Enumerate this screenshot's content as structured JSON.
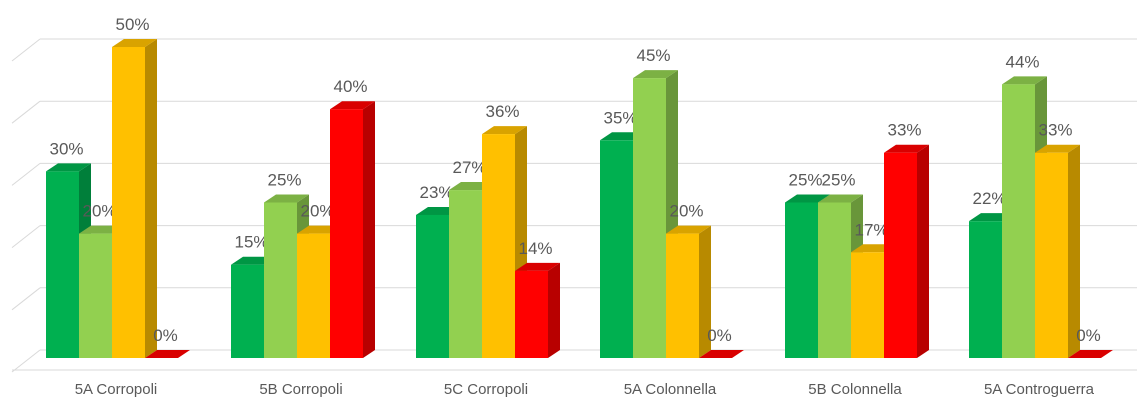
{
  "chart_data": {
    "type": "bar",
    "style": "3d-clustered-column",
    "categories": [
      "5A Corropoli",
      "5B Corropoli",
      "5C Corropoli",
      "5A Colonnella",
      "5B  Colonnella",
      "5A Controguerra"
    ],
    "series": [
      {
        "values": [
          30,
          15,
          23,
          35,
          25,
          22
        ],
        "color": "#00b050"
      },
      {
        "values": [
          20,
          25,
          27,
          45,
          25,
          44
        ],
        "color": "#92d050"
      },
      {
        "values": [
          50,
          20,
          36,
          20,
          17,
          33
        ],
        "color": "#ffc000"
      },
      {
        "values": [
          0,
          40,
          14,
          0,
          33,
          0
        ],
        "color": "#ff0000"
      }
    ],
    "data_labels": [
      [
        "30%",
        "15%",
        "23%",
        "35%",
        "25%",
        "22%"
      ],
      [
        "20%",
        "25%",
        "27%",
        "45%",
        "25%",
        "44%"
      ],
      [
        "50%",
        "20%",
        "36%",
        "20%",
        "17%",
        "33%"
      ],
      [
        "0%",
        "40%",
        "14%",
        "0%",
        "33%",
        "0%"
      ]
    ],
    "ylim": [
      0,
      50
    ],
    "grid": true,
    "legend": "none",
    "title": "",
    "xlabel": "",
    "ylabel": ""
  }
}
